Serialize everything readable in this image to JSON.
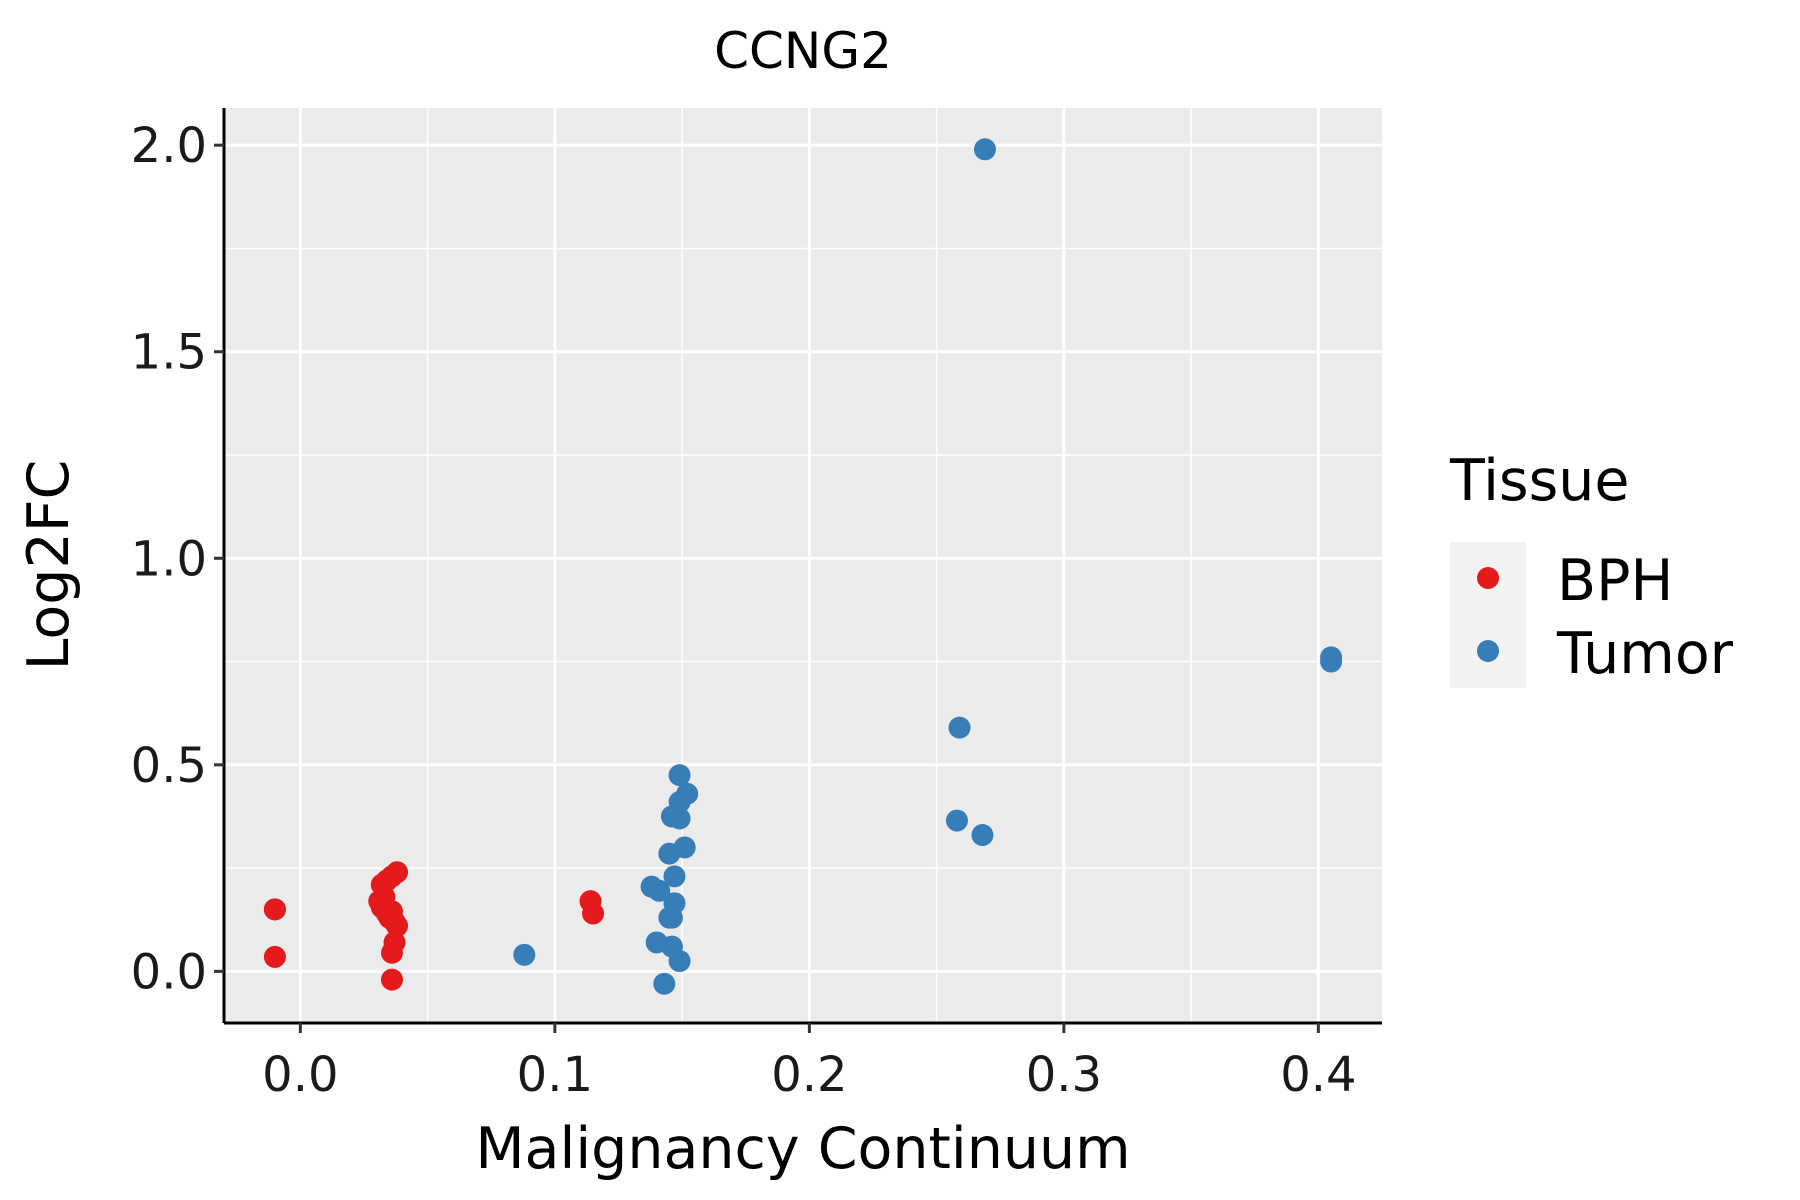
{
  "chart_data": {
    "type": "scatter",
    "title": "CCNG2",
    "xlabel": "Malignancy Continuum",
    "ylabel": "Log2FC",
    "xlim": [
      -0.03,
      0.425
    ],
    "ylim": [
      -0.125,
      2.09
    ],
    "x_ticks": [
      0.0,
      0.1,
      0.2,
      0.3,
      0.4
    ],
    "x_tick_labels": [
      "0.0",
      "0.1",
      "0.2",
      "0.3",
      "0.4"
    ],
    "y_ticks": [
      0.0,
      0.5,
      1.0,
      1.5,
      2.0
    ],
    "y_tick_labels": [
      "0.0",
      "0.5",
      "1.0",
      "1.5",
      "2.0"
    ],
    "x_minor": [
      0.05,
      0.15,
      0.25,
      0.35
    ],
    "y_minor": [
      0.25,
      0.75,
      1.25,
      1.75
    ],
    "grid": true,
    "legend": {
      "title": "Tissue",
      "position": "right"
    },
    "series": [
      {
        "name": "BPH",
        "color": "#E41A1C",
        "points": [
          [
            -0.01,
            0.15
          ],
          [
            -0.01,
            0.15
          ],
          [
            -0.01,
            0.035
          ],
          [
            0.032,
            0.21
          ],
          [
            0.034,
            0.22
          ],
          [
            0.036,
            0.23
          ],
          [
            0.038,
            0.24
          ],
          [
            0.031,
            0.17
          ],
          [
            0.033,
            0.18
          ],
          [
            0.032,
            0.155
          ],
          [
            0.034,
            0.14
          ],
          [
            0.036,
            0.145
          ],
          [
            0.035,
            0.13
          ],
          [
            0.037,
            0.12
          ],
          [
            0.038,
            0.11
          ],
          [
            0.037,
            0.07
          ],
          [
            0.036,
            0.045
          ],
          [
            0.036,
            -0.02
          ],
          [
            0.114,
            0.17
          ],
          [
            0.115,
            0.14
          ]
        ]
      },
      {
        "name": "Tumor",
        "color": "#377EB8",
        "points": [
          [
            0.088,
            0.04
          ],
          [
            0.149,
            0.475
          ],
          [
            0.152,
            0.43
          ],
          [
            0.149,
            0.41
          ],
          [
            0.146,
            0.375
          ],
          [
            0.149,
            0.37
          ],
          [
            0.151,
            0.3
          ],
          [
            0.145,
            0.285
          ],
          [
            0.147,
            0.23
          ],
          [
            0.138,
            0.205
          ],
          [
            0.141,
            0.195
          ],
          [
            0.147,
            0.165
          ],
          [
            0.145,
            0.13
          ],
          [
            0.146,
            0.13
          ],
          [
            0.14,
            0.07
          ],
          [
            0.146,
            0.06
          ],
          [
            0.149,
            0.025
          ],
          [
            0.143,
            -0.03
          ],
          [
            0.269,
            1.99
          ],
          [
            0.259,
            0.59
          ],
          [
            0.258,
            0.365
          ],
          [
            0.268,
            0.33
          ],
          [
            0.405,
            0.76
          ],
          [
            0.405,
            0.75
          ]
        ]
      }
    ]
  }
}
